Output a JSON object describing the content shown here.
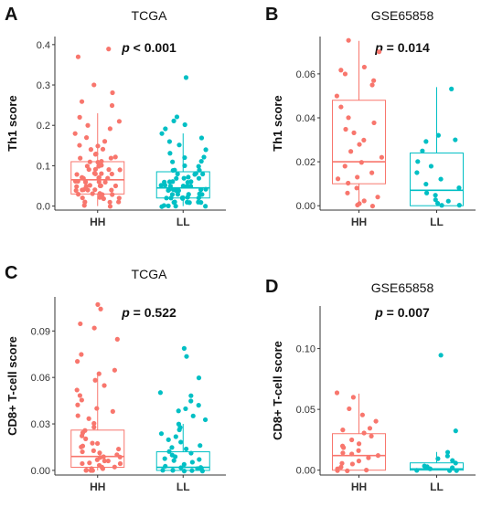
{
  "figure": {
    "colors": {
      "HH": "#F8766D",
      "LL": "#00BFC4"
    },
    "panels": [
      {
        "letter": "A",
        "title": "TCGA",
        "p_prefix": "p",
        "p_rest": " < 0.001",
        "ylabel": "Th1 score",
        "chart_data": {
          "type": "boxplot",
          "categories": [
            "HH",
            "LL"
          ],
          "ylim": [
            -0.01,
            0.42
          ],
          "yticks": [
            0.0,
            0.1,
            0.2,
            0.3,
            0.4
          ],
          "tick_labels": [
            "0.0",
            "0.1",
            "0.2",
            "0.3",
            "0.4"
          ],
          "boxes": [
            {
              "name": "HH",
              "min": 0.0,
              "q1": 0.03,
              "median": 0.065,
              "q3": 0.11,
              "max": 0.23
            },
            {
              "name": "LL",
              "min": 0.0,
              "q1": 0.02,
              "median": 0.045,
              "q3": 0.085,
              "max": 0.18
            }
          ],
          "points": [
            [
              0.39,
              0.37,
              0.3,
              0.28,
              0.26,
              0.25,
              0.22,
              0.21,
              0.2,
              0.19,
              0.18,
              0.17,
              0.16,
              0.15,
              0.15,
              0.14,
              0.14,
              0.13,
              0.13,
              0.12,
              0.12,
              0.12,
              0.11,
              0.11,
              0.11,
              0.1,
              0.1,
              0.1,
              0.09,
              0.09,
              0.09,
              0.09,
              0.08,
              0.08,
              0.08,
              0.08,
              0.08,
              0.07,
              0.07,
              0.07,
              0.07,
              0.07,
              0.06,
              0.06,
              0.06,
              0.06,
              0.06,
              0.06,
              0.05,
              0.05,
              0.05,
              0.05,
              0.05,
              0.05,
              0.04,
              0.04,
              0.04,
              0.04,
              0.04,
              0.04,
              0.03,
              0.03,
              0.03,
              0.03,
              0.03,
              0.02,
              0.02,
              0.02,
              0.02,
              0.01,
              0.01,
              0.01,
              0.0,
              0.0
            ],
            [
              0.32,
              0.22,
              0.21,
              0.2,
              0.19,
              0.18,
              0.17,
              0.16,
              0.15,
              0.14,
              0.13,
              0.12,
              0.12,
              0.11,
              0.11,
              0.1,
              0.1,
              0.09,
              0.09,
              0.09,
              0.08,
              0.08,
              0.08,
              0.08,
              0.07,
              0.07,
              0.07,
              0.07,
              0.06,
              0.06,
              0.06,
              0.06,
              0.06,
              0.05,
              0.05,
              0.05,
              0.05,
              0.05,
              0.05,
              0.04,
              0.04,
              0.04,
              0.04,
              0.04,
              0.04,
              0.04,
              0.03,
              0.03,
              0.03,
              0.03,
              0.03,
              0.03,
              0.03,
              0.02,
              0.02,
              0.02,
              0.02,
              0.02,
              0.02,
              0.02,
              0.01,
              0.01,
              0.01,
              0.01,
              0.01,
              0.01,
              0.0,
              0.0,
              0.0,
              0.0,
              0.0
            ]
          ]
        }
      },
      {
        "letter": "B",
        "title": "GSE65858",
        "p_prefix": "p",
        "p_rest": " = 0.014",
        "ylabel": "Th1 score",
        "chart_data": {
          "type": "boxplot",
          "categories": [
            "HH",
            "LL"
          ],
          "ylim": [
            -0.002,
            0.077
          ],
          "yticks": [
            0.0,
            0.02,
            0.04,
            0.06
          ],
          "tick_labels": [
            "0.00",
            "0.02",
            "0.04",
            "0.06"
          ],
          "boxes": [
            {
              "name": "HH",
              "min": 0.0,
              "q1": 0.01,
              "median": 0.02,
              "q3": 0.048,
              "max": 0.075
            },
            {
              "name": "LL",
              "min": 0.0,
              "q1": 0.0,
              "median": 0.007,
              "q3": 0.024,
              "max": 0.054
            }
          ],
          "points": [
            [
              0.075,
              0.07,
              0.063,
              0.062,
              0.06,
              0.057,
              0.055,
              0.05,
              0.045,
              0.04,
              0.038,
              0.035,
              0.033,
              0.03,
              0.028,
              0.025,
              0.022,
              0.02,
              0.018,
              0.015,
              0.013,
              0.012,
              0.01,
              0.008,
              0.006,
              0.004,
              0.002,
              0.001,
              0.0,
              0.0
            ],
            [
              0.053,
              0.032,
              0.03,
              0.029,
              0.025,
              0.02,
              0.018,
              0.015,
              0.012,
              0.01,
              0.008,
              0.006,
              0.005,
              0.003,
              0.002,
              0.001,
              0.0,
              0.0
            ]
          ]
        }
      },
      {
        "letter": "C",
        "title": "TCGA",
        "p_prefix": "p",
        "p_rest": " = 0.522",
        "ylabel": "CD8+ T-cell score",
        "chart_data": {
          "type": "boxplot",
          "categories": [
            "HH",
            "LL"
          ],
          "ylim": [
            -0.003,
            0.112
          ],
          "yticks": [
            0.0,
            0.03,
            0.06,
            0.09
          ],
          "tick_labels": [
            "0.00",
            "0.03",
            "0.06",
            "0.09"
          ],
          "boxes": [
            {
              "name": "HH",
              "min": 0.0,
              "q1": 0.002,
              "median": 0.009,
              "q3": 0.026,
              "max": 0.063
            },
            {
              "name": "LL",
              "min": 0.0,
              "q1": 0.0,
              "median": 0.002,
              "q3": 0.012,
              "max": 0.03
            }
          ],
          "points": [
            [
              0.107,
              0.104,
              0.095,
              0.092,
              0.085,
              0.075,
              0.07,
              0.065,
              0.062,
              0.058,
              0.055,
              0.052,
              0.048,
              0.045,
              0.042,
              0.04,
              0.038,
              0.035,
              0.033,
              0.03,
              0.028,
              0.026,
              0.024,
              0.022,
              0.02,
              0.018,
              0.017,
              0.016,
              0.015,
              0.014,
              0.013,
              0.012,
              0.011,
              0.01,
              0.009,
              0.009,
              0.008,
              0.007,
              0.006,
              0.006,
              0.005,
              0.004,
              0.004,
              0.003,
              0.002,
              0.002,
              0.001,
              0.001,
              0.0,
              0.0,
              0.0,
              0.0
            ],
            [
              0.079,
              0.074,
              0.06,
              0.05,
              0.048,
              0.045,
              0.042,
              0.04,
              0.038,
              0.035,
              0.033,
              0.03,
              0.028,
              0.026,
              0.024,
              0.022,
              0.02,
              0.018,
              0.016,
              0.015,
              0.014,
              0.012,
              0.011,
              0.01,
              0.009,
              0.008,
              0.007,
              0.006,
              0.005,
              0.004,
              0.003,
              0.002,
              0.002,
              0.001,
              0.001,
              0.0,
              0.0,
              0.0,
              0.0,
              0.0
            ]
          ]
        }
      },
      {
        "letter": "D",
        "title": "GSE65858",
        "p_prefix": "p",
        "p_rest": " = 0.007",
        "ylabel": "CD8+ T-cell score",
        "chart_data": {
          "type": "boxplot",
          "categories": [
            "HH",
            "LL"
          ],
          "ylim": [
            -0.004,
            0.135
          ],
          "yticks": [
            0.0,
            0.05,
            0.1
          ],
          "tick_labels": [
            "0.00",
            "0.05",
            "0.10"
          ],
          "boxes": [
            {
              "name": "HH",
              "min": 0.0,
              "q1": 0.0,
              "median": 0.012,
              "q3": 0.03,
              "max": 0.063
            },
            {
              "name": "LL",
              "min": 0.0,
              "q1": 0.0,
              "median": 0.001,
              "q3": 0.006,
              "max": 0.015
            }
          ],
          "points": [
            [
              0.064,
              0.06,
              0.05,
              0.045,
              0.04,
              0.035,
              0.033,
              0.03,
              0.028,
              0.025,
              0.022,
              0.02,
              0.018,
              0.016,
              0.014,
              0.013,
              0.012,
              0.01,
              0.008,
              0.006,
              0.005,
              0.003,
              0.001,
              0.0,
              0.0,
              0.0
            ],
            [
              0.094,
              0.032,
              0.015,
              0.012,
              0.01,
              0.008,
              0.006,
              0.004,
              0.003,
              0.002,
              0.001,
              0.0,
              0.0,
              0.0
            ]
          ]
        }
      }
    ]
  }
}
